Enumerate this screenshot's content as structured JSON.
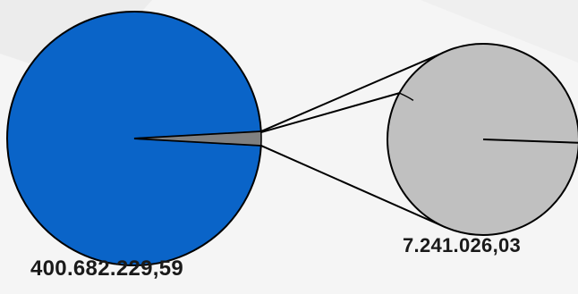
{
  "chart_data": {
    "type": "pie",
    "title": "",
    "main_pie": {
      "slices": [
        {
          "label": "400.682.229,59",
          "value": 400682229.59,
          "color": "#0a64c8"
        },
        {
          "label": "7.241.026,03",
          "value": 7241026.03,
          "color": "#808080"
        }
      ]
    },
    "detail_pie": {
      "of_slice": "7.241.026,03",
      "slices": [
        {
          "value": 7105000,
          "color": "#c0c0c0"
        },
        {
          "value": 136026.03,
          "color": "#c0c0c0"
        }
      ]
    },
    "labels": {
      "main_total": "400.682.229,59",
      "detail_total": "7.241.026,03"
    },
    "colors": {
      "main": "#0a64c8",
      "exploded_slice": "#808080",
      "detail": "#c0c0c0",
      "outline": "#000000",
      "background": "#f5f5f5"
    }
  }
}
